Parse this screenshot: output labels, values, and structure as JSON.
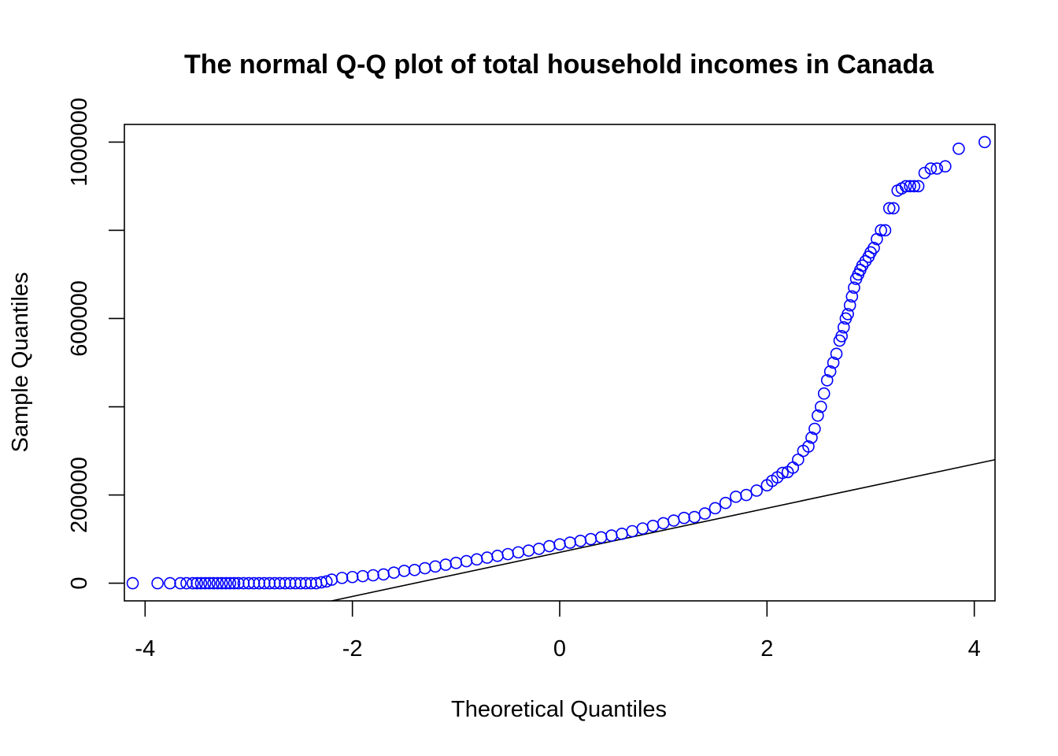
{
  "chart_data": {
    "type": "scatter",
    "title": "The normal Q-Q plot of total household incomes in Canada",
    "xlabel": "Theoretical Quantiles",
    "ylabel": "Sample Quantiles",
    "xlim": [
      -4.2,
      4.2
    ],
    "ylim": [
      -40000,
      1040000
    ],
    "x_ticks": [
      -4,
      -2,
      0,
      2,
      4
    ],
    "x_tick_labels": [
      "-4",
      "-2",
      "0",
      "2",
      "4"
    ],
    "y_ticks": [
      0,
      200000,
      400000,
      600000,
      800000,
      1000000
    ],
    "y_tick_labels": [
      "0",
      "200000",
      "",
      "600000",
      "",
      "1000000"
    ],
    "point_color": "#0000ff",
    "line_color": "#000000",
    "grid": false,
    "reference_line": {
      "intercept": 70000,
      "slope": 50000
    },
    "series": [
      {
        "x": [
          -4.12,
          -3.88,
          -3.76,
          -3.66,
          -3.6,
          -3.54,
          -3.5,
          -3.46,
          -3.42,
          -3.38,
          -3.34,
          -3.3,
          -3.26,
          -3.22,
          -3.18,
          -3.14,
          -3.1,
          -3.05,
          -3.0,
          -2.95,
          -2.9,
          -2.85,
          -2.8,
          -2.75,
          -2.7,
          -2.65,
          -2.6,
          -2.55,
          -2.5,
          -2.45,
          -2.4,
          -2.35,
          -2.3,
          -2.25,
          -2.2,
          -2.1,
          -2.0,
          -1.9,
          -1.8,
          -1.7,
          -1.6,
          -1.5,
          -1.4,
          -1.3,
          -1.2,
          -1.1,
          -1.0,
          -0.9,
          -0.8,
          -0.7,
          -0.6,
          -0.5,
          -0.4,
          -0.3,
          -0.2,
          -0.1,
          0.0,
          0.1,
          0.2,
          0.3,
          0.4,
          0.5,
          0.6,
          0.7,
          0.8,
          0.9,
          1.0,
          1.1,
          1.2,
          1.3,
          1.4,
          1.5,
          1.6,
          1.7,
          1.8,
          1.9,
          2.0,
          2.05,
          2.1,
          2.15,
          2.2,
          2.25,
          2.3,
          2.35,
          2.4,
          2.43,
          2.46,
          2.49,
          2.52,
          2.55,
          2.58,
          2.61,
          2.64,
          2.67,
          2.7,
          2.72,
          2.74,
          2.76,
          2.78,
          2.8,
          2.82,
          2.84,
          2.86,
          2.88,
          2.9,
          2.92,
          2.95,
          2.98,
          3.0,
          3.03,
          3.06,
          3.1,
          3.14,
          3.18,
          3.22,
          3.26,
          3.3,
          3.34,
          3.38,
          3.42,
          3.46,
          3.52,
          3.58,
          3.64,
          3.72,
          3.85,
          4.1
        ],
        "y": [
          0,
          0,
          0,
          0,
          0,
          0,
          0,
          0,
          0,
          0,
          0,
          0,
          0,
          0,
          0,
          0,
          0,
          0,
          0,
          0,
          0,
          0,
          0,
          0,
          0,
          0,
          0,
          0,
          0,
          0,
          0,
          0,
          2000,
          4000,
          8000,
          12000,
          14000,
          16000,
          18000,
          20000,
          24000,
          28000,
          30000,
          34000,
          38000,
          42000,
          46000,
          50000,
          54000,
          58000,
          62000,
          66000,
          70000,
          74000,
          78000,
          84000,
          88000,
          92000,
          96000,
          100000,
          104000,
          108000,
          112000,
          118000,
          124000,
          130000,
          136000,
          142000,
          148000,
          150000,
          158000,
          170000,
          182000,
          196000,
          200000,
          210000,
          222000,
          232000,
          240000,
          250000,
          252000,
          262000,
          280000,
          300000,
          310000,
          330000,
          350000,
          380000,
          400000,
          430000,
          460000,
          480000,
          500000,
          520000,
          550000,
          560000,
          580000,
          600000,
          610000,
          630000,
          650000,
          670000,
          690000,
          700000,
          710000,
          720000,
          730000,
          740000,
          750000,
          760000,
          780000,
          800000,
          800000,
          850000,
          850000,
          890000,
          895000,
          900000,
          900000,
          900000,
          900000,
          930000,
          940000,
          940000,
          945000,
          985000,
          1000000
        ]
      }
    ]
  }
}
